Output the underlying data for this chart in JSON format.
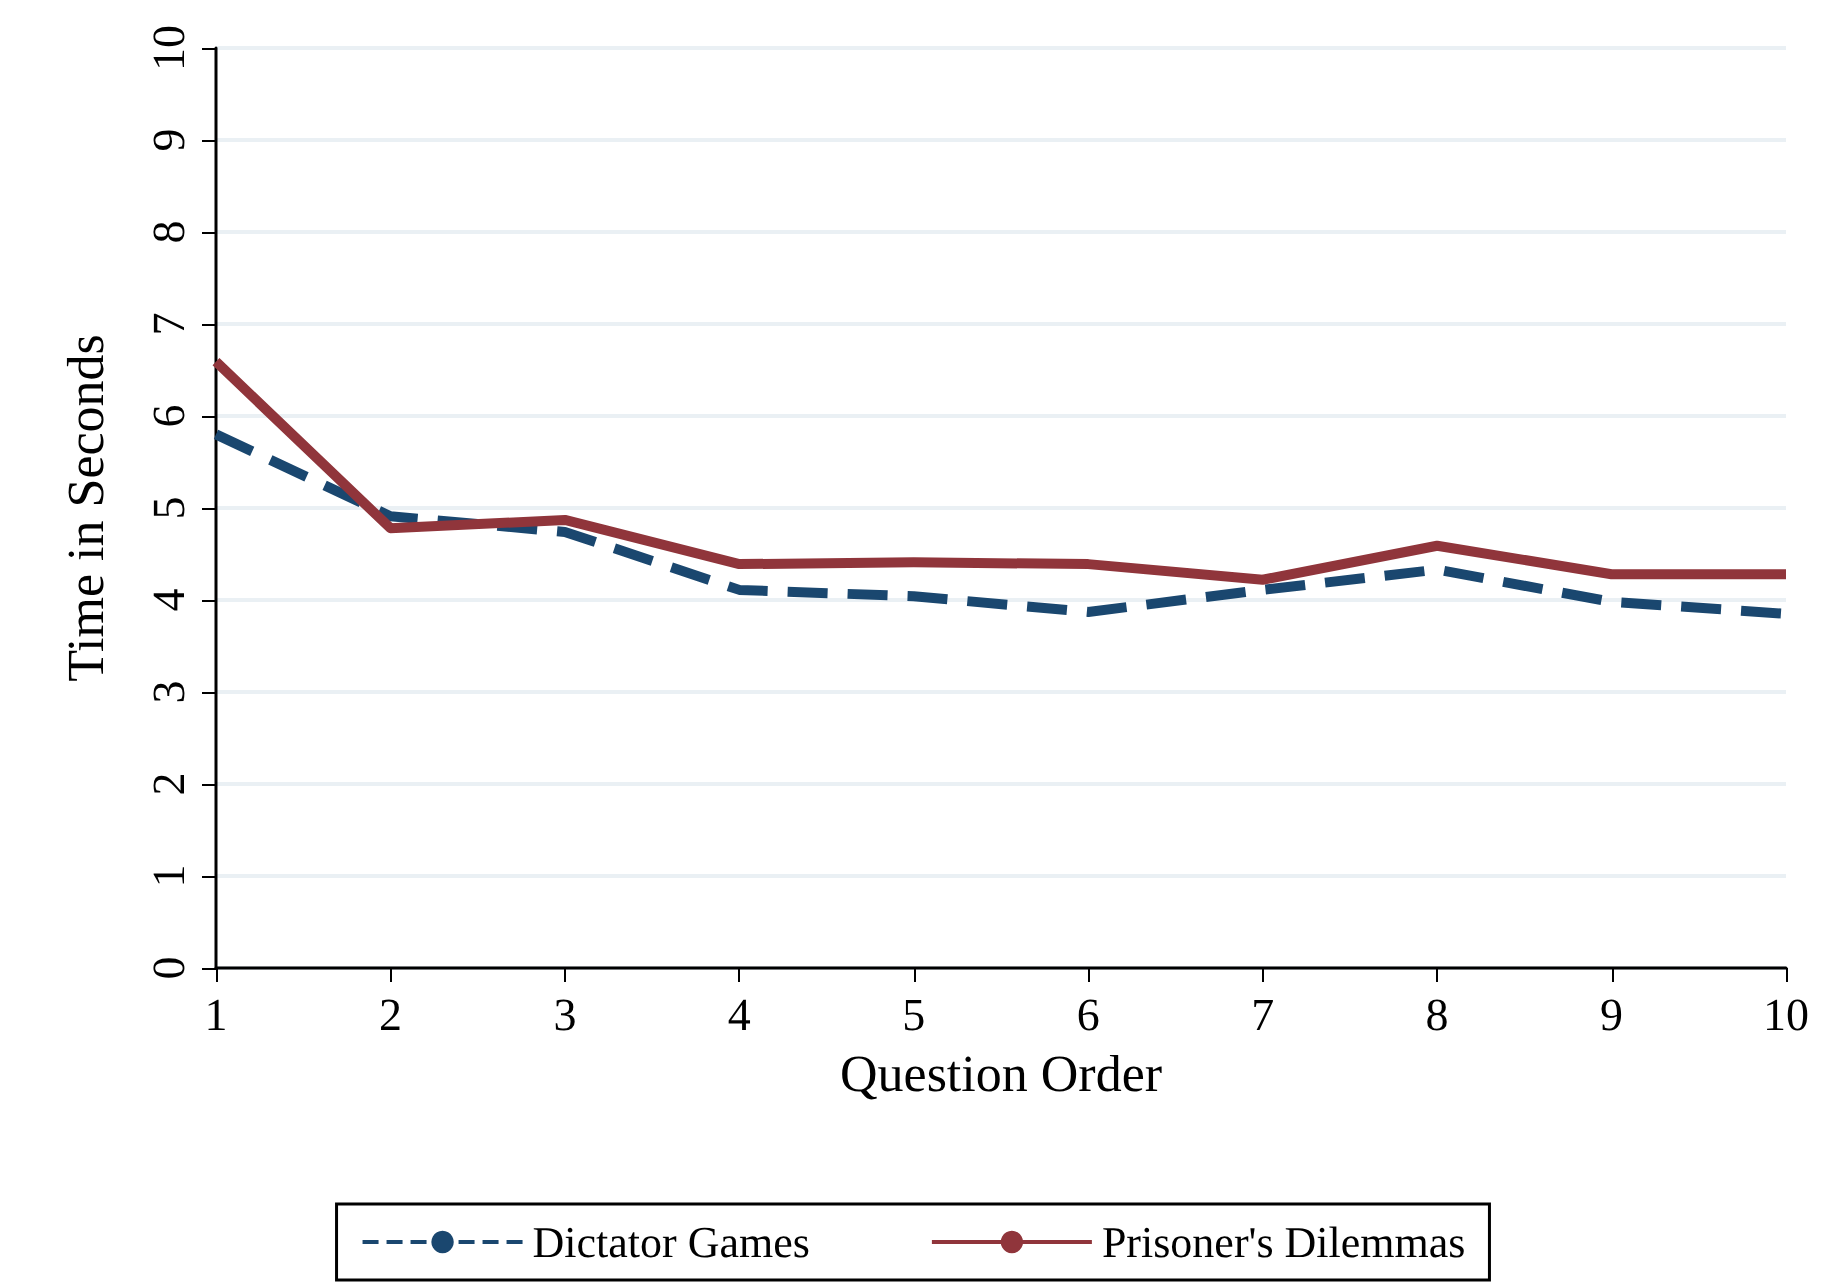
{
  "chart_data": {
    "type": "line",
    "xlabel": "Question Order",
    "ylabel": "Time in Seconds",
    "x": [
      1,
      2,
      3,
      4,
      5,
      6,
      7,
      8,
      9,
      10
    ],
    "series": [
      {
        "name": "Dictator Games",
        "color": "#1a476f",
        "line_style": "dashed",
        "values": [
          5.8,
          4.91,
          4.74,
          4.11,
          4.04,
          3.87,
          4.11,
          4.33,
          3.98,
          3.85
        ]
      },
      {
        "name": "Prisoner's Dilemmas",
        "color": "#90353b",
        "line_style": "solid",
        "values": [
          6.59,
          4.78,
          4.87,
          4.39,
          4.41,
          4.39,
          4.22,
          4.59,
          4.28,
          4.28
        ]
      }
    ],
    "xlim": [
      1,
      10
    ],
    "xticks": [
      1,
      2,
      3,
      4,
      5,
      6,
      7,
      8,
      9,
      10
    ],
    "ylim": [
      0,
      10
    ],
    "yticks": [
      0,
      1,
      2,
      3,
      4,
      5,
      6,
      7,
      8,
      9,
      10
    ],
    "grid": "y",
    "legend": "bottom",
    "marker": "none"
  }
}
